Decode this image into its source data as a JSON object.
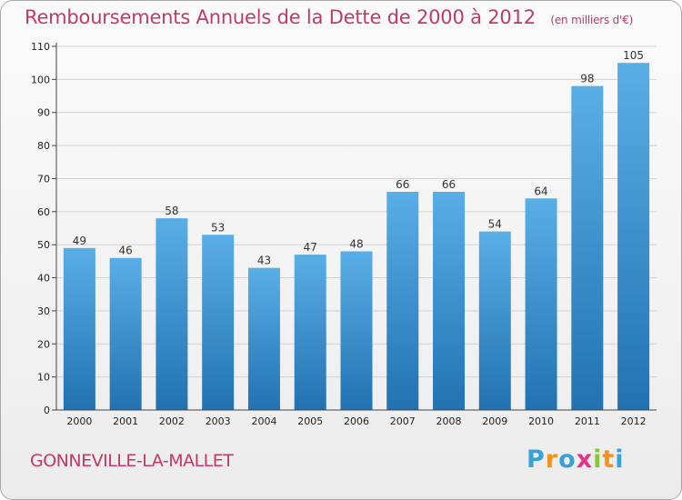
{
  "header": {
    "title": "Remboursements Annuels de la Dette de 2000 à 2012",
    "unit": "(en milliers d'€)"
  },
  "footer": {
    "commune": "GONNEVILLE-LA-MALLET",
    "logo": [
      "P",
      "r",
      "o",
      "x",
      "i",
      "t",
      "i"
    ],
    "logo_colors": [
      "#3aa0d8",
      "#f29320",
      "#3aa0d8",
      "#e8308a",
      "#8cc63f",
      "#f29320",
      "#3aa0d8"
    ]
  },
  "colors": {
    "accent": "#c23a62",
    "bar_top": "#5aaee6",
    "bar_bottom": "#2272b2"
  },
  "chart_data": {
    "type": "bar",
    "title": "Remboursements Annuels de la Dette de 2000 à 2012",
    "ylabel": "(en milliers d'€)",
    "categories": [
      "2000",
      "2001",
      "2002",
      "2003",
      "2004",
      "2005",
      "2006",
      "2007",
      "2008",
      "2009",
      "2010",
      "2011",
      "2012"
    ],
    "values": [
      49,
      46,
      58,
      53,
      43,
      47,
      48,
      66,
      66,
      54,
      64,
      98,
      105
    ],
    "ylim": [
      0,
      110
    ],
    "yticks": [
      0,
      10,
      20,
      30,
      40,
      50,
      60,
      70,
      80,
      90,
      100,
      110
    ],
    "grid": true
  }
}
